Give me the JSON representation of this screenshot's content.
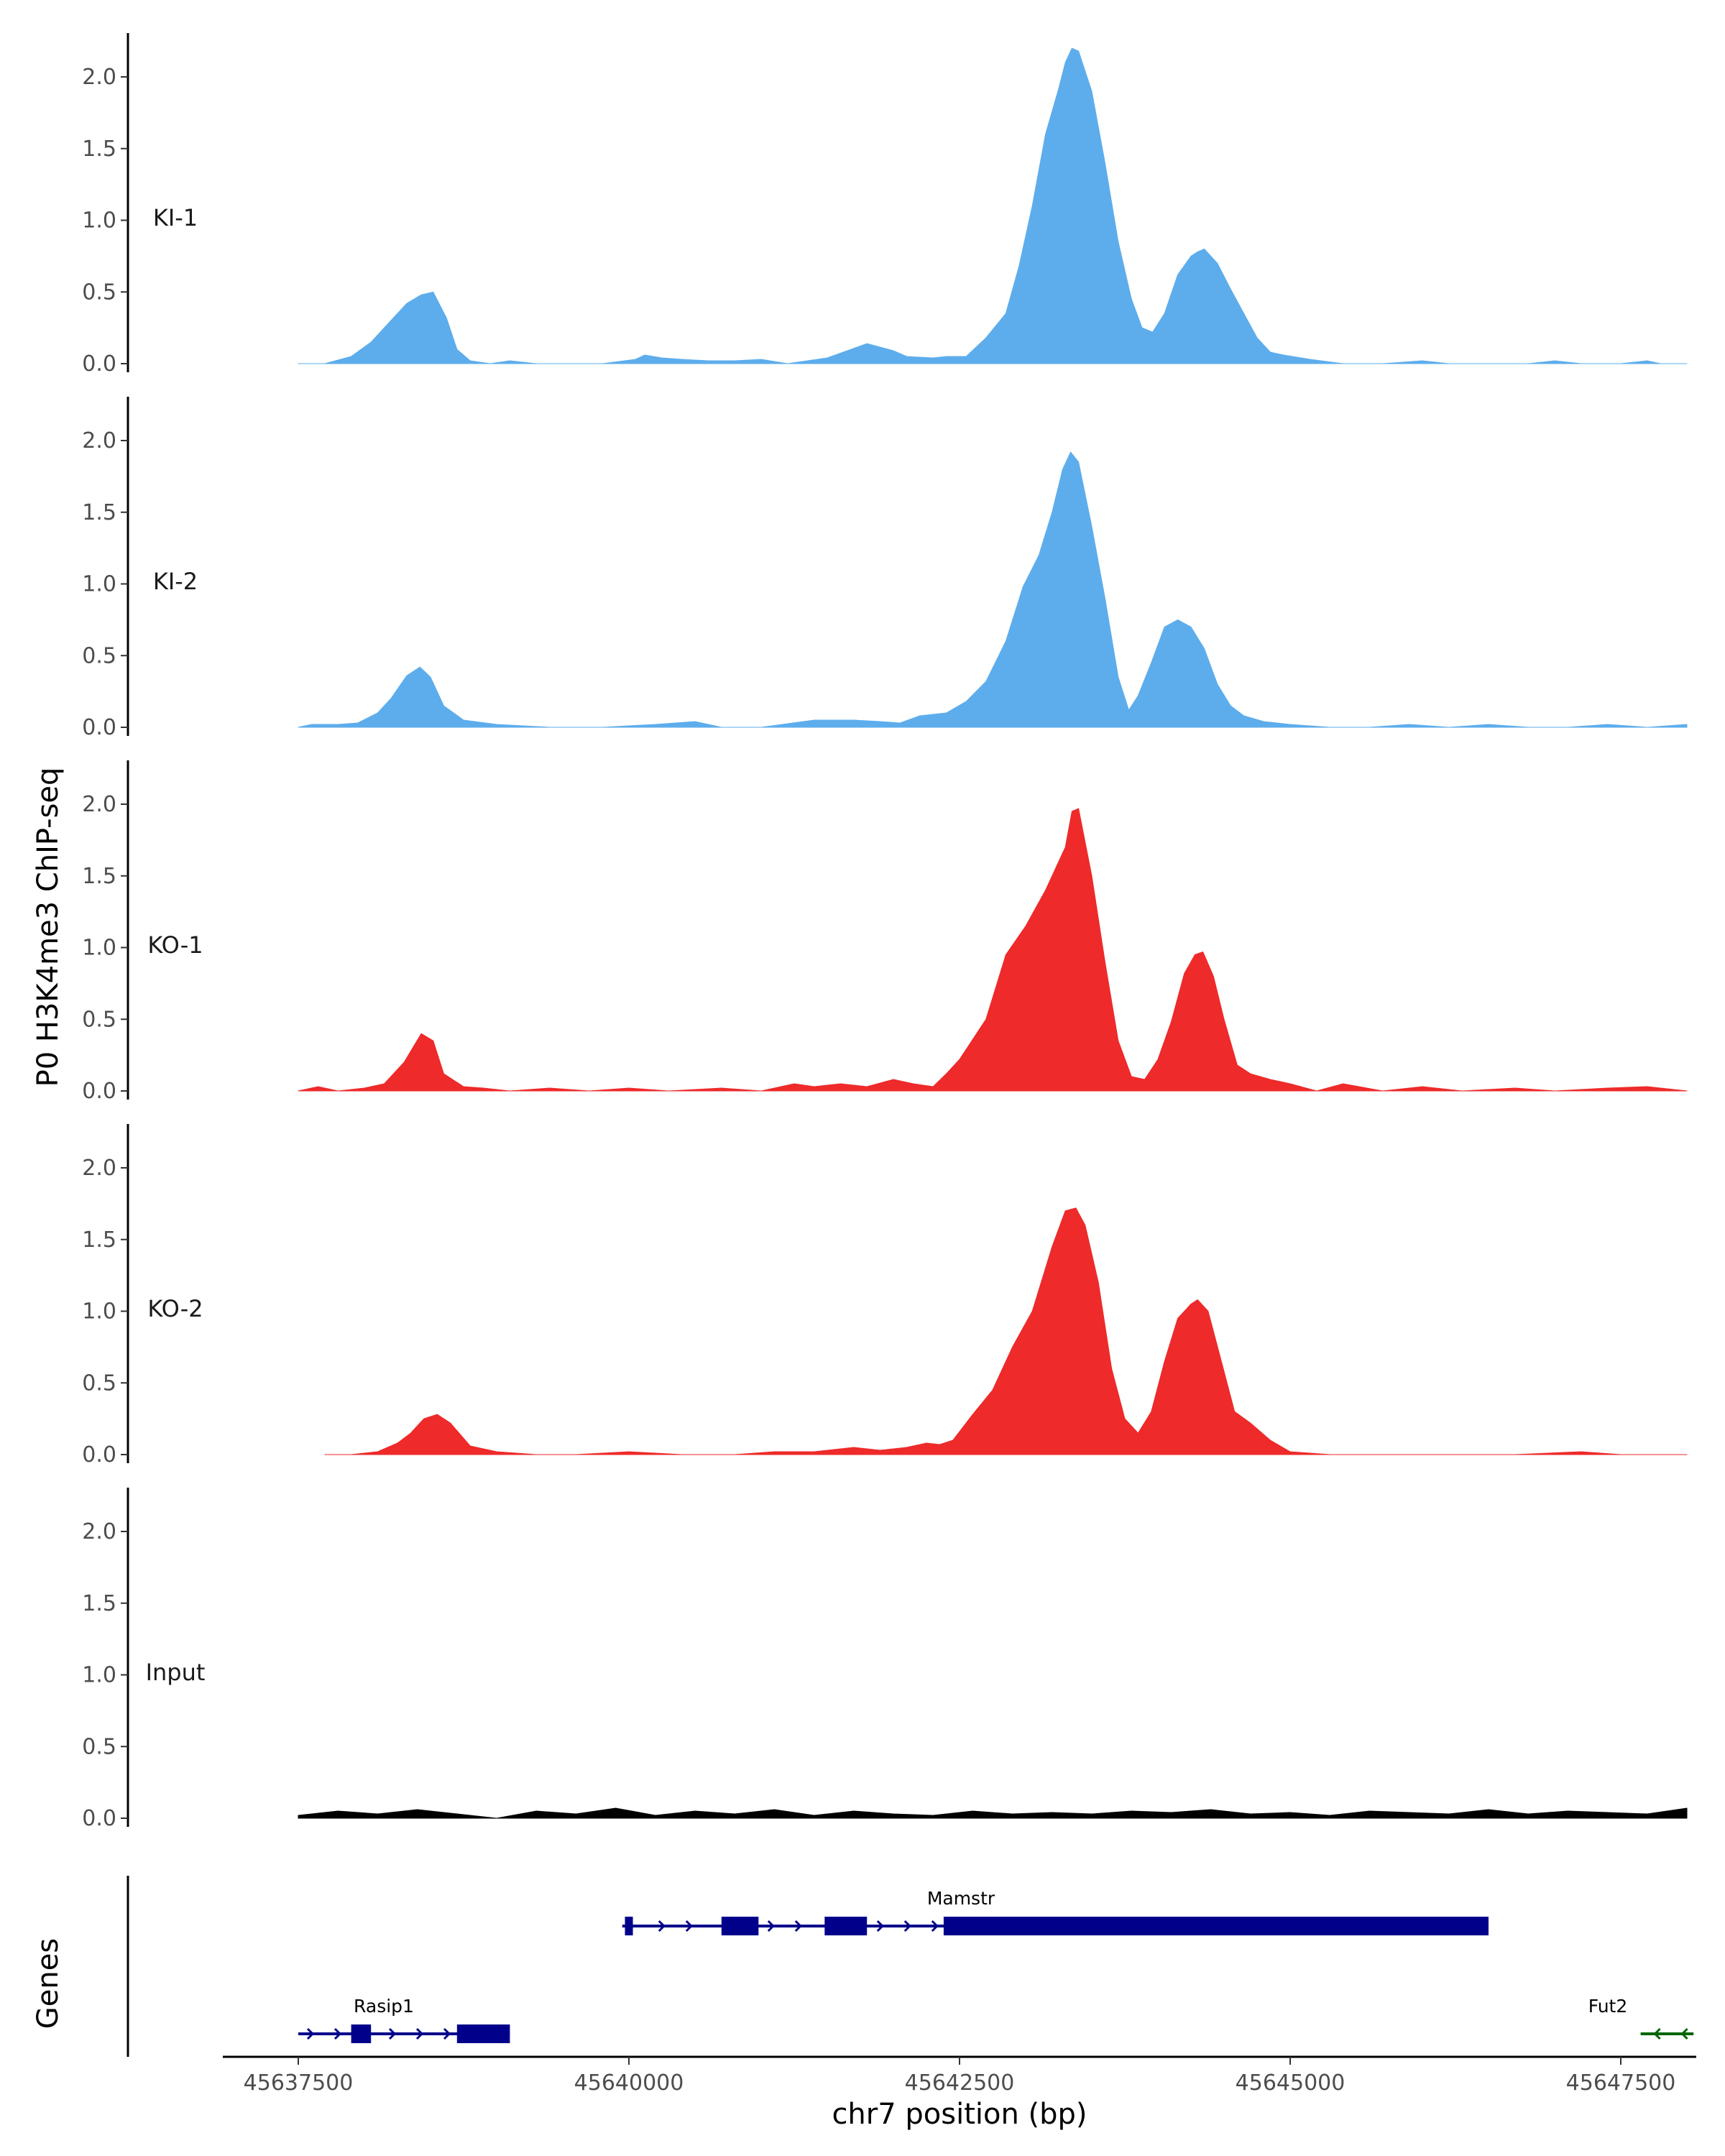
{
  "chart_data": {
    "type": "area",
    "ylabel": "P0 H3K4me3 ChIP-seq",
    "xlabel": "chr7 position (bp)",
    "gene_track_label": "Genes",
    "xlim": [
      45636800,
      45648200
    ],
    "ylim": [
      0,
      2.3
    ],
    "y_ticks": [
      0.0,
      0.5,
      1.0,
      1.5,
      2.0
    ],
    "y_tick_labels": [
      "0.0",
      "0.5",
      "1.0",
      "1.5",
      "2.0"
    ],
    "x_ticks": [
      45637500,
      45640000,
      45642500,
      45645000,
      45647500
    ],
    "x_tick_labels": [
      "45637500",
      "45640000",
      "45642500",
      "45645000",
      "45647500"
    ],
    "colors": {
      "KI": "#5DADEC",
      "KO": "#EE2A2A",
      "Input": "#000000",
      "gene_plus": "#00008B",
      "gene_minus": "#006400",
      "axis": "#000000"
    },
    "tracks": [
      {
        "name": "KI-1",
        "color": "#5DADEC",
        "x": [
          45637500,
          45637700,
          45637900,
          45638050,
          45638200,
          45638320,
          45638430,
          45638520,
          45638620,
          45638700,
          45638800,
          45638950,
          45639100,
          45639300,
          45639500,
          45639800,
          45640050,
          45640120,
          45640250,
          45640400,
          45640600,
          45640800,
          45641000,
          45641200,
          45641500,
          45641800,
          45642000,
          45642100,
          45642300,
          45642400,
          45642550,
          45642700,
          45642850,
          45642950,
          45643050,
          45643150,
          45643250,
          45643300,
          45643350,
          45643400,
          45643500,
          45643600,
          45643700,
          45643800,
          45643880,
          45643960,
          45644050,
          45644150,
          45644250,
          45644300,
          45644350,
          45644450,
          45644550,
          45644650,
          45644750,
          45644850,
          45644950,
          45645150,
          45645400,
          45645700,
          45646000,
          45646200,
          45646500,
          45646800,
          45647000,
          45647200,
          45647500,
          45647700,
          45647800,
          45648000
        ],
        "values": [
          0.0,
          0.0,
          0.05,
          0.15,
          0.3,
          0.42,
          0.48,
          0.5,
          0.32,
          0.1,
          0.02,
          0.0,
          0.02,
          0.0,
          0.0,
          0.0,
          0.03,
          0.06,
          0.04,
          0.03,
          0.02,
          0.02,
          0.03,
          0.0,
          0.04,
          0.14,
          0.09,
          0.05,
          0.04,
          0.05,
          0.05,
          0.18,
          0.35,
          0.68,
          1.1,
          1.6,
          1.92,
          2.1,
          2.2,
          2.18,
          1.9,
          1.4,
          0.85,
          0.45,
          0.25,
          0.22,
          0.35,
          0.62,
          0.75,
          0.78,
          0.8,
          0.7,
          0.52,
          0.35,
          0.18,
          0.08,
          0.06,
          0.03,
          0.0,
          0.0,
          0.02,
          0.0,
          0.0,
          0.0,
          0.02,
          0.0,
          0.0,
          0.02,
          0.0,
          0.0
        ]
      },
      {
        "name": "KI-2",
        "color": "#5DADEC",
        "x": [
          45637500,
          45637600,
          45637800,
          45637950,
          45638100,
          45638200,
          45638320,
          45638420,
          45638500,
          45638600,
          45638750,
          45639000,
          45639400,
          45639800,
          45640200,
          45640500,
          45640700,
          45641000,
          45641400,
          45641700,
          45641900,
          45642050,
          45642200,
          45642400,
          45642550,
          45642700,
          45642850,
          45642980,
          45643100,
          45643200,
          45643280,
          45643340,
          45643400,
          45643500,
          45643600,
          45643700,
          45643780,
          45643850,
          45643950,
          45644050,
          45644150,
          45644250,
          45644350,
          45644450,
          45644550,
          45644650,
          45644800,
          45645000,
          45645300,
          45645600,
          45645900,
          45646200,
          45646500,
          45646800,
          45647100,
          45647400,
          45647700,
          45648000
        ],
        "values": [
          0.0,
          0.02,
          0.02,
          0.03,
          0.1,
          0.2,
          0.36,
          0.42,
          0.35,
          0.15,
          0.05,
          0.02,
          0.0,
          0.0,
          0.02,
          0.04,
          0.0,
          0.0,
          0.05,
          0.05,
          0.04,
          0.03,
          0.08,
          0.1,
          0.18,
          0.32,
          0.6,
          0.98,
          1.2,
          1.5,
          1.8,
          1.92,
          1.85,
          1.4,
          0.9,
          0.35,
          0.12,
          0.22,
          0.45,
          0.7,
          0.75,
          0.7,
          0.55,
          0.3,
          0.15,
          0.08,
          0.04,
          0.02,
          0.0,
          0.0,
          0.02,
          0.0,
          0.02,
          0.0,
          0.0,
          0.02,
          0.0,
          0.02
        ]
      },
      {
        "name": "KO-1",
        "color": "#EE2A2A",
        "x": [
          45637500,
          45637650,
          45637800,
          45638000,
          45638150,
          45638300,
          45638430,
          45638520,
          45638600,
          45638750,
          45638900,
          45639100,
          45639400,
          45639700,
          45640000,
          45640300,
          45640700,
          45641000,
          45641250,
          45641400,
          45641600,
          45641800,
          45642000,
          45642150,
          45642300,
          45642400,
          45642500,
          45642700,
          45642850,
          45643000,
          45643150,
          45643300,
          45643350,
          45643400,
          45643500,
          45643600,
          45643700,
          45643800,
          45643900,
          45644000,
          45644100,
          45644200,
          45644280,
          45644340,
          45644420,
          45644500,
          45644600,
          45644700,
          45644850,
          45645000,
          45645200,
          45645400,
          45645700,
          45646000,
          45646300,
          45646700,
          45647000,
          45647400,
          45647700,
          45648000
        ],
        "values": [
          0.0,
          0.03,
          0.0,
          0.02,
          0.05,
          0.2,
          0.4,
          0.35,
          0.12,
          0.03,
          0.02,
          0.0,
          0.02,
          0.0,
          0.02,
          0.0,
          0.02,
          0.0,
          0.05,
          0.03,
          0.05,
          0.03,
          0.08,
          0.05,
          0.03,
          0.12,
          0.22,
          0.5,
          0.95,
          1.15,
          1.4,
          1.7,
          1.95,
          1.97,
          1.5,
          0.9,
          0.35,
          0.1,
          0.08,
          0.22,
          0.48,
          0.82,
          0.95,
          0.97,
          0.8,
          0.5,
          0.18,
          0.12,
          0.08,
          0.05,
          0.0,
          0.05,
          0.0,
          0.03,
          0.0,
          0.02,
          0.0,
          0.02,
          0.03,
          0.0
        ]
      },
      {
        "name": "KO-2",
        "color": "#EE2A2A",
        "x": [
          45637700,
          45637900,
          45638100,
          45638250,
          45638350,
          45638450,
          45638550,
          45638650,
          45638800,
          45639000,
          45639300,
          45639600,
          45640000,
          45640400,
          45640800,
          45641100,
          45641400,
          45641700,
          45641900,
          45642100,
          45642250,
          45642350,
          45642450,
          45642600,
          45642750,
          45642900,
          45643050,
          45643200,
          45643300,
          45643380,
          45643450,
          45643550,
          45643650,
          45643750,
          45643850,
          45643950,
          45644050,
          45644150,
          45644250,
          45644300,
          45644380,
          45644480,
          45644580,
          45644700,
          45644850,
          45645000,
          45645300,
          45645700,
          45646200,
          45646700,
          45647200,
          45647500,
          45647700,
          45648000
        ],
        "values": [
          0.0,
          0.0,
          0.02,
          0.08,
          0.15,
          0.25,
          0.28,
          0.22,
          0.06,
          0.02,
          0.0,
          0.0,
          0.02,
          0.0,
          0.0,
          0.02,
          0.02,
          0.05,
          0.03,
          0.05,
          0.08,
          0.07,
          0.1,
          0.28,
          0.45,
          0.75,
          1.0,
          1.45,
          1.7,
          1.72,
          1.6,
          1.2,
          0.6,
          0.25,
          0.15,
          0.3,
          0.65,
          0.95,
          1.05,
          1.08,
          1.0,
          0.65,
          0.3,
          0.22,
          0.1,
          0.02,
          0.0,
          0.0,
          0.0,
          0.0,
          0.02,
          0.0,
          0.0,
          0.0
        ]
      },
      {
        "name": "Input",
        "color": "#000000",
        "x": [
          45637500,
          45637800,
          45638100,
          45638400,
          45638700,
          45639000,
          45639300,
          45639600,
          45639900,
          45640200,
          45640500,
          45640800,
          45641100,
          45641400,
          45641700,
          45642000,
          45642300,
          45642600,
          45642900,
          45643200,
          45643500,
          45643800,
          45644100,
          45644400,
          45644700,
          45645000,
          45645300,
          45645600,
          45645900,
          45646200,
          45646500,
          45646800,
          45647100,
          45647400,
          45647700,
          45648000
        ],
        "values": [
          0.02,
          0.05,
          0.03,
          0.06,
          0.03,
          0.0,
          0.05,
          0.03,
          0.07,
          0.02,
          0.05,
          0.03,
          0.06,
          0.02,
          0.05,
          0.03,
          0.02,
          0.05,
          0.03,
          0.04,
          0.03,
          0.05,
          0.04,
          0.06,
          0.03,
          0.04,
          0.02,
          0.05,
          0.04,
          0.03,
          0.06,
          0.03,
          0.05,
          0.04,
          0.03,
          0.07
        ]
      }
    ],
    "genes": [
      {
        "name": "Mamstr",
        "strand": "+",
        "start": 45639950,
        "end": 45646500,
        "exons": [
          [
            45639970,
            45640030
          ],
          [
            45640700,
            45640980
          ],
          [
            45641480,
            45641800
          ],
          [
            45642380,
            45646500
          ]
        ],
        "color": "#00008B"
      },
      {
        "name": "Rasip1",
        "strand": "+",
        "start": 45637500,
        "end": 45639100,
        "exons": [
          [
            45637900,
            45638050
          ],
          [
            45638700,
            45639100
          ]
        ],
        "color": "#00008B"
      },
      {
        "name": "Fut2",
        "strand": "-",
        "start": 45647650,
        "end": 45648050,
        "exons": [],
        "color": "#006400"
      }
    ]
  }
}
